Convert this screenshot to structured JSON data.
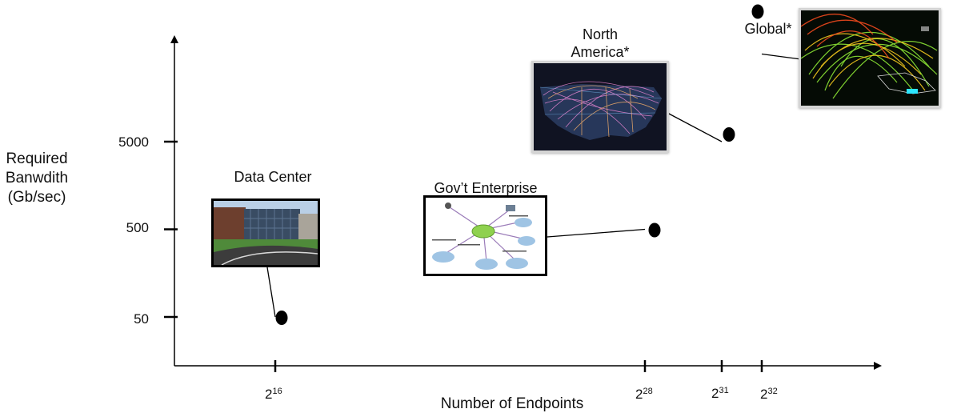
{
  "chart_data": {
    "type": "scatter",
    "title": "",
    "xlabel": "Number of Endpoints",
    "ylabel": [
      "Required",
      "Banwdith",
      "(Gb/sec)"
    ],
    "x_ticks": [
      {
        "base": "2",
        "exp": "16",
        "value": 16
      },
      {
        "base": "2",
        "exp": "28",
        "value": 28
      },
      {
        "base": "2",
        "exp": "31",
        "value": 31
      },
      {
        "base": "2",
        "exp": "32",
        "value": 32
      }
    ],
    "y_ticks": [
      {
        "label": "50",
        "value": 50
      },
      {
        "label": "500",
        "value": 500
      },
      {
        "label": "5000",
        "value": 5000
      }
    ],
    "y_scale": "log",
    "points": [
      {
        "name": "Data Center",
        "x_exp": 16,
        "y": 50
      },
      {
        "name": "Gov’t Enterprise",
        "x_exp": 28,
        "y": 500
      },
      {
        "name": "North America*",
        "x_exp": 31,
        "y": 5000
      },
      {
        "name": "Global*",
        "x_exp": 32,
        "y": 50000
      }
    ]
  },
  "labels": {
    "data_center": "Data Center",
    "gov_enterprise": "Gov’t Enterprise",
    "north_america_1": "North",
    "north_america_2": "America*",
    "global": "Global*"
  },
  "colors": {
    "axis": "#000000",
    "point": "#000000",
    "frame_thick": "#000000",
    "frame_light": "#cfcfcf"
  }
}
